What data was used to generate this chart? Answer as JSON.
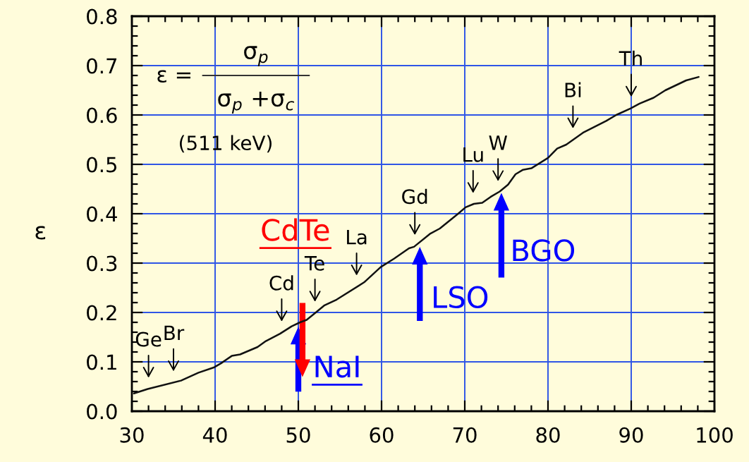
{
  "chart_data": {
    "type": "line",
    "ylabel": "ε",
    "x": [
      30.25,
      31.9,
      35.9,
      38.0,
      39.9,
      40.7,
      42.0,
      43.0,
      45.1,
      46.1,
      47.8,
      49.2,
      50.2,
      51.0,
      52.1,
      53.1,
      54.6,
      57.9,
      59.9,
      61.5,
      63.3,
      63.9,
      65.8,
      67.0,
      69.2,
      70.1,
      71.1,
      72.1,
      73.1,
      74.2,
      75.2,
      76.1,
      77.0,
      78.0,
      80.0,
      81.1,
      82.2,
      84.2,
      87.0,
      88.2,
      89.9,
      91.0,
      92.7,
      94.1,
      96.6,
      98.1
    ],
    "series": [
      {
        "color": "#111111",
        "values": [
          0.036,
          0.045,
          0.062,
          0.078,
          0.089,
          0.097,
          0.112,
          0.115,
          0.13,
          0.142,
          0.157,
          0.172,
          0.18,
          0.185,
          0.2,
          0.214,
          0.226,
          0.261,
          0.292,
          0.309,
          0.33,
          0.333,
          0.359,
          0.37,
          0.4,
          0.413,
          0.42,
          0.422,
          0.434,
          0.445,
          0.459,
          0.48,
          0.489,
          0.492,
          0.513,
          0.532,
          0.54,
          0.564,
          0.588,
          0.6,
          0.613,
          0.623,
          0.635,
          0.65,
          0.67,
          0.677
        ]
      }
    ],
    "xlim": [
      30,
      100
    ],
    "ylim": [
      0,
      0.8
    ],
    "xticks": [
      30,
      {
        "value": 32,
        "label": null
      },
      {
        "value": 34,
        "label": null
      },
      {
        "value": 36,
        "label": null
      },
      {
        "value": 38,
        "label": null
      },
      40,
      {
        "value": 42,
        "label": null
      },
      {
        "value": 44,
        "label": null
      },
      {
        "value": 46,
        "label": null
      },
      {
        "value": 48,
        "label": null
      },
      50,
      {
        "value": 52,
        "label": null
      },
      {
        "value": 54,
        "label": null
      },
      {
        "value": 56,
        "label": null
      },
      {
        "value": 58,
        "label": null
      },
      60,
      {
        "value": 62,
        "label": null
      },
      {
        "value": 64,
        "label": null
      },
      {
        "value": 66,
        "label": null
      },
      {
        "value": 68,
        "label": null
      },
      70,
      {
        "value": 72,
        "label": null
      },
      {
        "value": 74,
        "label": null
      },
      {
        "value": 76,
        "label": null
      },
      {
        "value": 78,
        "label": null
      },
      80,
      {
        "value": 82,
        "label": null
      },
      {
        "value": 84,
        "label": null
      },
      {
        "value": 86,
        "label": null
      },
      {
        "value": 88,
        "label": null
      },
      90,
      {
        "value": 92,
        "label": null
      },
      {
        "value": 94,
        "label": null
      },
      {
        "value": 96,
        "label": null
      },
      {
        "value": 98,
        "label": null
      },
      100
    ],
    "yticks": [
      {
        "value": 0,
        "label": "0.0"
      },
      {
        "value": 0.02,
        "label": null
      },
      {
        "value": 0.04,
        "label": null
      },
      {
        "value": 0.06,
        "label": null
      },
      {
        "value": 0.08,
        "label": null
      },
      0.1,
      {
        "value": 0.12,
        "label": null
      },
      {
        "value": 0.14,
        "label": null
      },
      {
        "value": 0.16,
        "label": null
      },
      {
        "value": 0.18,
        "label": null
      },
      0.2,
      {
        "value": 0.22,
        "label": null
      },
      {
        "value": 0.24,
        "label": null
      },
      {
        "value": 0.26,
        "label": null
      },
      {
        "value": 0.28,
        "label": null
      },
      0.3,
      {
        "value": 0.32,
        "label": null
      },
      {
        "value": 0.34,
        "label": null
      },
      {
        "value": 0.36,
        "label": null
      },
      {
        "value": 0.38,
        "label": null
      },
      0.4,
      {
        "value": 0.42,
        "label": null
      },
      {
        "value": 0.44,
        "label": null
      },
      {
        "value": 0.46,
        "label": null
      },
      {
        "value": 0.48,
        "label": null
      },
      0.5,
      {
        "value": 0.52,
        "label": null
      },
      {
        "value": 0.54,
        "label": null
      },
      {
        "value": 0.56,
        "label": null
      },
      {
        "value": 0.58,
        "label": null
      },
      0.6,
      {
        "value": 0.62,
        "label": null
      },
      {
        "value": 0.64,
        "label": null
      },
      {
        "value": 0.66,
        "label": null
      },
      {
        "value": 0.68,
        "label": null
      },
      0.7,
      {
        "value": 0.72,
        "label": null
      },
      {
        "value": 0.74,
        "label": null
      },
      {
        "value": 0.76,
        "label": null
      },
      {
        "value": 0.78,
        "label": null
      },
      0.8
    ],
    "grid": true,
    "annotations": [
      "ε =",
      "σ$_{p}$",
      "σ$_{p}$ +σ$_{c}$",
      "(511 keV)",
      {
        "text": "Ge",
        "x": 32,
        "y": 0.045
      },
      {
        "text": "Br",
        "x": 35,
        "y": 0.058
      },
      {
        "text": "Cd",
        "x": 48,
        "y": 0.159
      },
      {
        "text": "Te",
        "x": 52,
        "y": 0.199
      },
      {
        "text": "La",
        "x": 57,
        "y": 0.252
      },
      {
        "text": "Gd",
        "x": 64,
        "y": 0.334
      },
      {
        "text": "Lu",
        "x": 71,
        "y": 0.419
      },
      {
        "text": "W",
        "x": 74,
        "y": 0.443
      },
      {
        "text": "Bi",
        "x": 83,
        "y": 0.55
      },
      {
        "text": "Th",
        "x": 90,
        "y": 0.614
      },
      {
        "text": "NaI",
        "x": 50.0,
        "y": 0.171
      },
      {
        "text": "CdTe",
        "x": 50.5,
        "y": 0.182
      },
      {
        "text": "LSO",
        "x": 64.6,
        "y": 0.333
      },
      {
        "text": "BGO",
        "x": 74.4,
        "y": 0.442
      }
    ]
  }
}
